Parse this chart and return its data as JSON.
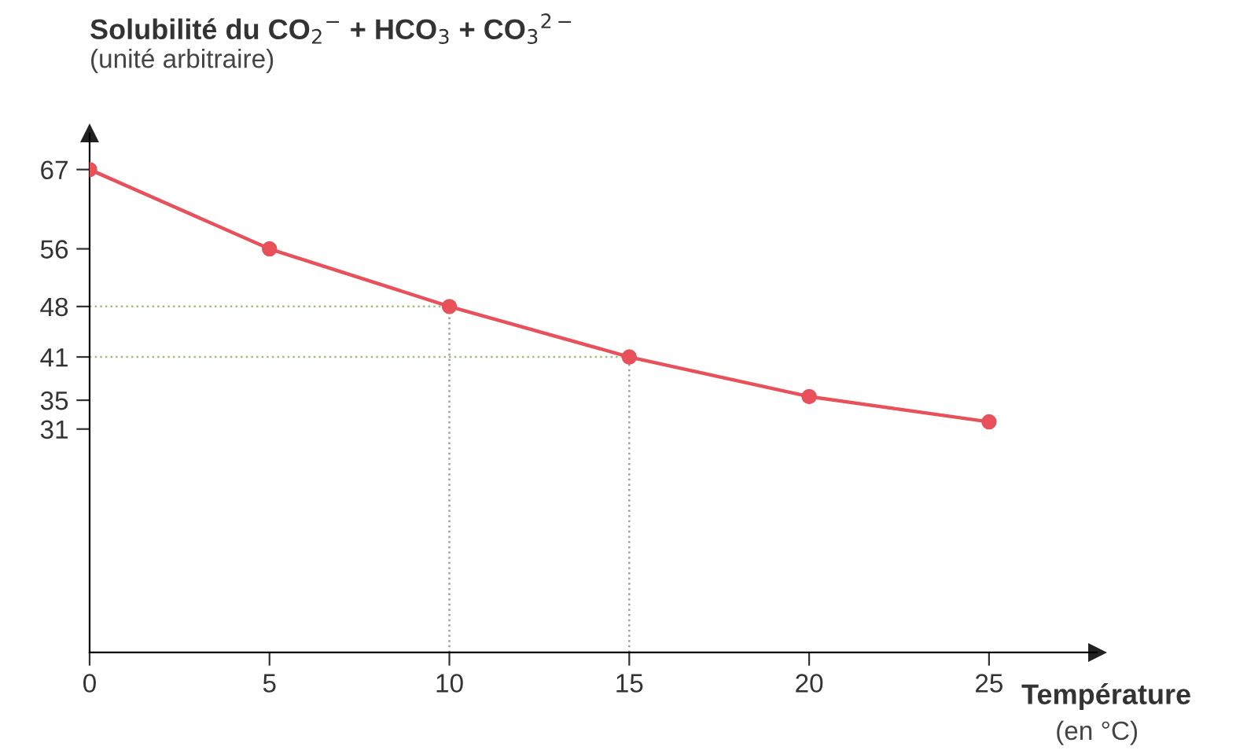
{
  "chart_data": {
    "type": "line",
    "ylabel": "Solubilité du CO$_{2}$$^{−}$ + HCO$_{3}$ + CO$_{3}$$^{2−}$",
    "xlabel": "Température",
    "annotations": [
      "(unité arbitraire)",
      "(en °C)"
    ],
    "x": [
      0,
      5,
      10,
      15,
      20,
      25
    ],
    "series": [
      {
        "color": "#e8505a",
        "values": [
          67,
          56,
          48,
          41,
          35.5,
          32
        ]
      }
    ],
    "marker": "circle",
    "xlim": [
      0,
      28
    ],
    "xticks": [
      0,
      5,
      10,
      15,
      20,
      25
    ],
    "ylim": [
      0,
      72
    ],
    "yticks": [
      31,
      35,
      41,
      48,
      56,
      67
    ],
    "ref_lines": [
      {
        "axis": "x",
        "value": 10,
        "line_style": "dotted",
        "color": "#a0a0a0"
      },
      {
        "axis": "x",
        "value": 15,
        "line_style": "dotted",
        "color": "#a0a0a0"
      },
      {
        "axis": "y",
        "value": 48,
        "line_style": "dotted",
        "color": "#a0c080"
      },
      {
        "axis": "y",
        "value": 41,
        "line_style": "dotted",
        "color": "#a0c080"
      }
    ],
    "grid": false
  }
}
